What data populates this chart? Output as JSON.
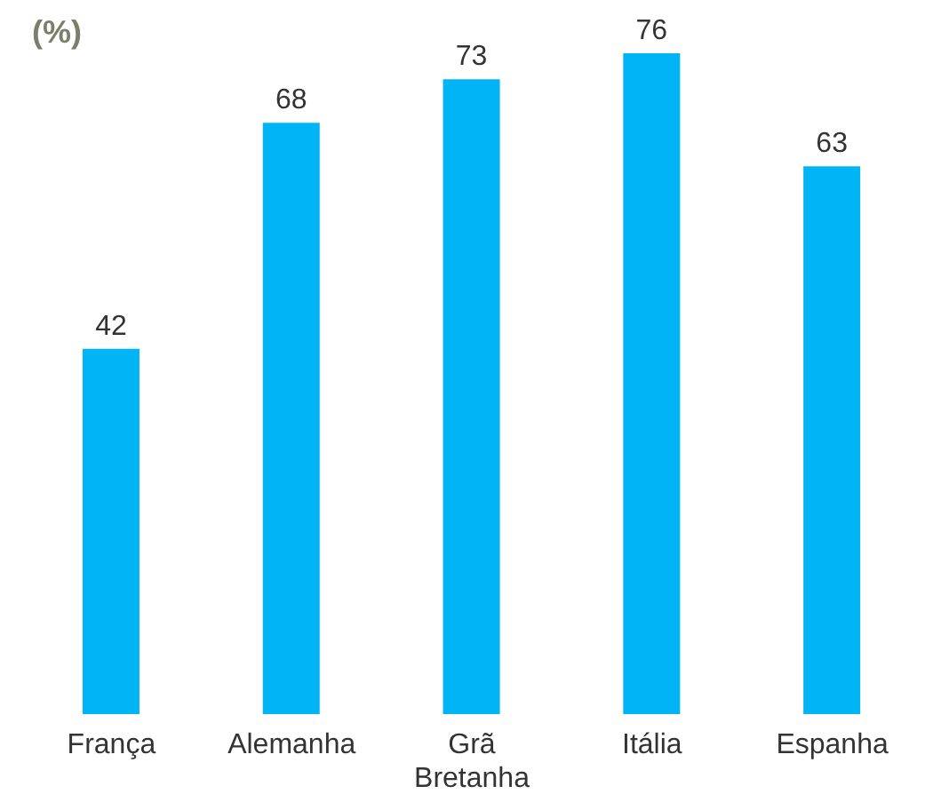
{
  "chart_data": {
    "type": "bar",
    "ylabel": "(%)",
    "categories": [
      "França",
      "Alemanha",
      "Grã Bretanha",
      "Itália",
      "Espanha"
    ],
    "values": [
      42,
      68,
      73,
      76,
      63
    ],
    "color": "#00b4f5",
    "data_labels": true
  }
}
